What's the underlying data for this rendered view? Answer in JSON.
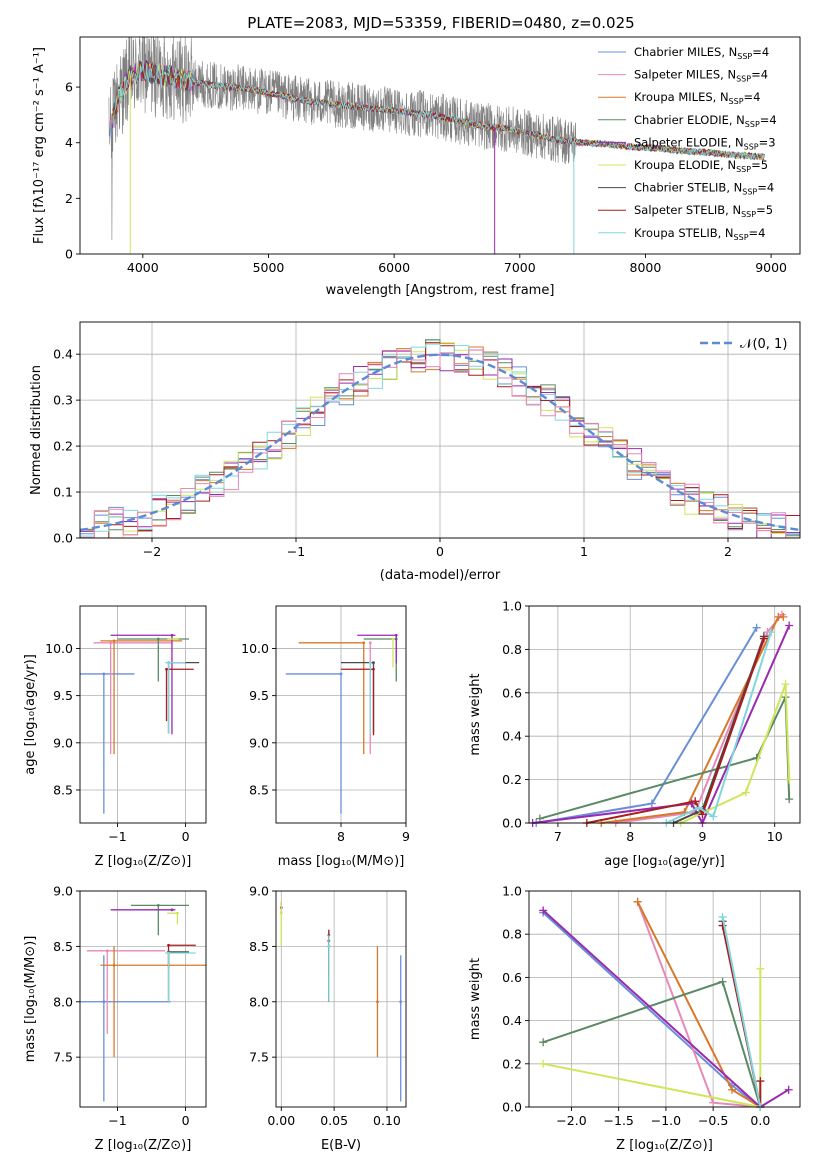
{
  "page": {
    "title": "PLATE=2083, MJD=53359, FIBERID=0480, z=0.025"
  },
  "colors": {
    "spectrum": "#808080",
    "normal_curve": "#5b8bd5",
    "models": [
      "#6a8fd8",
      "#e889b8",
      "#d8782a",
      "#5a8a64",
      "#9a2ab0",
      "#cfe65a",
      "#4a4a4a",
      "#a81d1d",
      "#7fd6dc"
    ]
  },
  "chart_data": [
    {
      "id": "spectrum",
      "type": "line",
      "xlabel": "wavelength [Angstrom, rest frame]",
      "ylabel": "Flux [fλ10⁻¹⁷ erg cm⁻² s⁻¹ A⁻¹]",
      "xlim": [
        3500,
        9230
      ],
      "ylim": [
        0,
        7.8
      ],
      "xticks": [
        "4000",
        "5000",
        "6000",
        "7000",
        "8000",
        "9000"
      ],
      "yticks": [
        "0",
        "2",
        "4",
        "6"
      ],
      "legend_position": "upper-right",
      "legend": [
        {
          "label": "Chabrier MILES, N",
          "sub": "SSP",
          "tail": "=4",
          "color": "#6a8fd8"
        },
        {
          "label": "Salpeter MILES, N",
          "sub": "SSP",
          "tail": "=4",
          "color": "#e889b8"
        },
        {
          "label": "Kroupa MILES, N",
          "sub": "SSP",
          "tail": "=4",
          "color": "#d8782a"
        },
        {
          "label": "Chabrier ELODIE, N",
          "sub": "SSP",
          "tail": "=4",
          "color": "#5a8a64"
        },
        {
          "label": "Salpeter ELODIE, N",
          "sub": "SSP",
          "tail": "=3",
          "color": "#9a2ab0"
        },
        {
          "label": "Kroupa ELODIE, N",
          "sub": "SSP",
          "tail": "=5",
          "color": "#cfe65a"
        },
        {
          "label": "Chabrier STELIB, N",
          "sub": "SSP",
          "tail": "=4",
          "color": "#4a4a4a"
        },
        {
          "label": "Salpeter STELIB, N",
          "sub": "SSP",
          "tail": "=5",
          "color": "#a81d1d"
        },
        {
          "label": "Kroupa STELIB, N",
          "sub": "SSP",
          "tail": "=4",
          "color": "#7fd6dc"
        }
      ],
      "continuum": {
        "x": [
          3730,
          3800,
          3900,
          4000,
          4100,
          4200,
          4300,
          4500,
          4700,
          4900,
          5100,
          5300,
          5500,
          5700,
          5900,
          6100,
          6300,
          6500,
          6700,
          6900,
          7100,
          7300,
          7500,
          7700,
          7900,
          8100,
          8300,
          8500,
          8700,
          8950
        ],
        "y": [
          4.2,
          5.6,
          6.4,
          6.6,
          6.5,
          6.4,
          6.3,
          6.1,
          6.0,
          5.9,
          5.7,
          5.5,
          5.4,
          5.3,
          5.2,
          5.1,
          5.0,
          4.8,
          4.6,
          4.5,
          4.3,
          4.1,
          4.0,
          3.95,
          3.85,
          3.8,
          3.7,
          3.65,
          3.55,
          3.5
        ]
      }
    },
    {
      "id": "residuals",
      "type": "histogram",
      "xlabel": "(data-model)/error",
      "ylabel": "Normed distribution",
      "xlim": [
        -2.5,
        2.5
      ],
      "ylim": [
        0,
        0.47
      ],
      "xticks": [
        "−2",
        "−1",
        "0",
        "1",
        "2"
      ],
      "yticks": [
        "0.0",
        "0.1",
        "0.2",
        "0.3",
        "0.4"
      ],
      "legend": "𝒩(0, 1)",
      "legend_position": "upper-right",
      "bin_width": 0.1
    },
    {
      "id": "age-vs-Z",
      "type": "scatter",
      "xlabel": "Z [log₁₀(Z/Z⊙)]",
      "ylabel": "age  [log₁₀(age/yr)]",
      "xlim": [
        -1.55,
        0.3
      ],
      "ylim": [
        8.15,
        10.45
      ],
      "xticks": [
        "−1",
        "0"
      ],
      "yticks": [
        "8.5",
        "9.0",
        "9.5",
        "10.0"
      ],
      "points": [
        {
          "x": -1.2,
          "y": 9.73,
          "xerr": [
            0.35,
            0.45
          ],
          "yerr": [
            1.48,
            0
          ],
          "c": 0
        },
        {
          "x": -1.1,
          "y": 10.06,
          "xerr": [
            0.25,
            0.9
          ],
          "yerr": [
            1.18,
            0
          ],
          "c": 1
        },
        {
          "x": -1.05,
          "y": 10.08,
          "xerr": [
            0.2,
            1.0
          ],
          "yerr": [
            1.2,
            0
          ],
          "c": 2
        },
        {
          "x": -0.4,
          "y": 10.1,
          "xerr": [
            0.6,
            0.45
          ],
          "yerr": [
            0.45,
            0
          ],
          "c": 3
        },
        {
          "x": -0.2,
          "y": 10.14,
          "xerr": [
            0.9,
            0.05
          ],
          "yerr": [
            1.05,
            0
          ],
          "c": 4
        },
        {
          "x": -0.12,
          "y": 10.1,
          "xerr": [
            0.15,
            0.0
          ],
          "yerr": [
            0,
            0
          ],
          "c": 5
        },
        {
          "x": -0.25,
          "y": 9.85,
          "xerr": [
            0.0,
            0.45
          ],
          "yerr": [
            0.75,
            0
          ],
          "c": 6
        },
        {
          "x": -0.28,
          "y": 9.78,
          "xerr": [
            0.0,
            0.4
          ],
          "yerr": [
            0.55,
            0
          ],
          "c": 7
        },
        {
          "x": -0.25,
          "y": 9.85,
          "xerr": [
            0.05,
            0.25
          ],
          "yerr": [
            0.75,
            0
          ],
          "c": 8
        }
      ]
    },
    {
      "id": "age-vs-mass",
      "type": "scatter",
      "xlabel": "mass [log₁₀(M/M⊙)]",
      "ylabel": "",
      "xlim": [
        7.0,
        9.0
      ],
      "ylim": [
        8.15,
        10.45
      ],
      "xticks": [
        "8",
        "9"
      ],
      "yticks": [
        "8.5",
        "9.0",
        "9.5",
        "10.0"
      ],
      "points": [
        {
          "x": 8.0,
          "y": 9.73,
          "xerr": [
            0.85,
            0.0
          ],
          "yerr": [
            1.48,
            0
          ],
          "c": 0
        },
        {
          "x": 8.45,
          "y": 10.06,
          "xerr": [
            0.0,
            0.0
          ],
          "yerr": [
            1.18,
            0
          ],
          "c": 1
        },
        {
          "x": 8.35,
          "y": 10.06,
          "xerr": [
            1.0,
            0.0
          ],
          "yerr": [
            1.18,
            0
          ],
          "c": 2
        },
        {
          "x": 8.85,
          "y": 10.1,
          "xerr": [
            0.5,
            0.0
          ],
          "yerr": [
            0.45,
            0
          ],
          "c": 3
        },
        {
          "x": 8.85,
          "y": 10.14,
          "xerr": [
            0.6,
            0.0
          ],
          "yerr": [
            0.3,
            0
          ],
          "c": 4
        },
        {
          "x": 8.8,
          "y": 10.1,
          "xerr": [
            0.0,
            0.0
          ],
          "yerr": [
            0.3,
            0
          ],
          "c": 5
        },
        {
          "x": 8.5,
          "y": 9.85,
          "xerr": [
            0.5,
            0.0
          ],
          "yerr": [
            0.75,
            0
          ],
          "c": 6
        },
        {
          "x": 8.5,
          "y": 9.78,
          "xerr": [
            0.5,
            0.0
          ],
          "yerr": [
            0.7,
            0
          ],
          "c": 7
        },
        {
          "x": 8.45,
          "y": 9.85,
          "xerr": [
            0.0,
            0.0
          ],
          "yerr": [
            0.75,
            0
          ],
          "c": 8
        }
      ]
    },
    {
      "id": "massweight-vs-age",
      "type": "line",
      "xlabel": "age  [log₁₀(age/yr)]",
      "ylabel": "mass weight",
      "xlim": [
        6.6,
        10.35
      ],
      "ylim": [
        0,
        1.0
      ],
      "xticks": [
        "7",
        "8",
        "9",
        "10"
      ],
      "yticks": [
        "0.0",
        "0.2",
        "0.4",
        "0.6",
        "0.8",
        "1.0"
      ],
      "series": [
        {
          "c": 0,
          "x": [
            6.7,
            8.3,
            9.75
          ],
          "y": [
            0.0,
            0.09,
            0.9
          ]
        },
        {
          "c": 1,
          "x": [
            7.8,
            8.9,
            9.9,
            10.1
          ],
          "y": [
            0.0,
            0.05,
            0.88,
            0.96
          ]
        },
        {
          "c": 2,
          "x": [
            7.6,
            8.75,
            10.05,
            10.12
          ],
          "y": [
            0.0,
            0.05,
            0.95,
            0.95
          ]
        },
        {
          "c": 3,
          "x": [
            6.75,
            9.75,
            10.15,
            10.2
          ],
          "y": [
            0.02,
            0.3,
            0.58,
            0.11
          ]
        },
        {
          "c": 4,
          "x": [
            6.65,
            8.85,
            9.0,
            10.2
          ],
          "y": [
            0.0,
            0.09,
            0.0,
            0.91
          ]
        },
        {
          "c": 5,
          "x": [
            8.7,
            9.6,
            10.15,
            10.2
          ],
          "y": [
            0.0,
            0.14,
            0.64,
            0.2
          ]
        },
        {
          "c": 6,
          "x": [
            8.6,
            9.0,
            9.85
          ],
          "y": [
            0.0,
            0.06,
            0.86
          ]
        },
        {
          "c": 7,
          "x": [
            7.4,
            8.9,
            9.0,
            9.85
          ],
          "y": [
            0.0,
            0.1,
            0.04,
            0.85
          ]
        },
        {
          "c": 8,
          "x": [
            8.5,
            8.95,
            9.15,
            9.95
          ],
          "y": [
            0.0,
            0.07,
            0.03,
            0.88
          ]
        }
      ]
    },
    {
      "id": "mass-vs-Z",
      "type": "scatter",
      "xlabel": "Z [log₁₀(Z/Z⊙)]",
      "ylabel": "mass [log₁₀(M/M⊙)]",
      "xlim": [
        -1.55,
        0.3
      ],
      "ylim": [
        7.05,
        9.0
      ],
      "xticks": [
        "−1",
        "0"
      ],
      "yticks": [
        "7.5",
        "8.0",
        "8.5",
        "9.0"
      ],
      "points": [
        {
          "x": -1.2,
          "y": 8.0,
          "xerr": [
            0.35,
            0.98
          ],
          "yerr": [
            0.9,
            0.42
          ],
          "c": 0
        },
        {
          "x": -1.15,
          "y": 8.46,
          "xerr": [
            0.3,
            0.85
          ],
          "yerr": [
            0.75,
            0
          ],
          "c": 1
        },
        {
          "x": -1.05,
          "y": 8.33,
          "xerr": [
            0.2,
            1.35
          ],
          "yerr": [
            0.83,
            0.17
          ],
          "c": 2
        },
        {
          "x": -0.4,
          "y": 8.87,
          "xerr": [
            0.4,
            0.45
          ],
          "yerr": [
            0.27,
            0
          ],
          "c": 3
        },
        {
          "x": -0.2,
          "y": 8.83,
          "xerr": [
            0.9,
            0.05
          ],
          "yerr": [
            0,
            0
          ],
          "c": 4
        },
        {
          "x": -0.12,
          "y": 8.8,
          "xerr": [
            0.15,
            0.0
          ],
          "yerr": [
            0.1,
            0
          ],
          "c": 5
        },
        {
          "x": -0.25,
          "y": 8.45,
          "xerr": [
            0.0,
            0.3
          ],
          "yerr": [
            0.45,
            0
          ],
          "c": 6
        },
        {
          "x": -0.25,
          "y": 8.51,
          "xerr": [
            0.0,
            0.4
          ],
          "yerr": [
            0.2,
            0
          ],
          "c": 7
        },
        {
          "x": -0.25,
          "y": 8.44,
          "xerr": [
            0.05,
            0.4
          ],
          "yerr": [
            0.45,
            0
          ],
          "c": 8
        }
      ]
    },
    {
      "id": "mass-vs-ebv",
      "type": "scatter",
      "xlabel": "E(B-V)",
      "ylabel": "",
      "xlim": [
        -0.005,
        0.118
      ],
      "ylim": [
        7.05,
        9.0
      ],
      "xticks": [
        "0.00",
        "0.05",
        "0.10"
      ],
      "yticks": [
        "7.5",
        "8.0",
        "8.5",
        "9.0"
      ],
      "points": [
        {
          "x": 0.113,
          "y": 8.0,
          "yerr": [
            0.9,
            0.42
          ],
          "c": 0
        },
        {
          "x": 0.045,
          "y": 8.5,
          "yerr": [
            0.5,
            0.1
          ],
          "c": 1
        },
        {
          "x": 0.091,
          "y": 8.0,
          "yerr": [
            0.5,
            0.5
          ],
          "c": 2
        },
        {
          "x": 0.045,
          "y": 8.6,
          "yerr": [
            0.6,
            0.05
          ],
          "c": 3
        },
        {
          "x": 0.0,
          "y": 8.85,
          "yerr": [
            0.05,
            0.05
          ],
          "c": 4
        },
        {
          "x": 0.0,
          "y": 8.8,
          "yerr": [
            0.3,
            0.1
          ],
          "c": 5
        },
        {
          "x": 0.045,
          "y": 8.5,
          "yerr": [
            0.5,
            0.1
          ],
          "c": 6
        },
        {
          "x": 0.045,
          "y": 8.55,
          "yerr": [
            0.3,
            0.1
          ],
          "c": 7
        },
        {
          "x": 0.045,
          "y": 8.5,
          "yerr": [
            0.5,
            0.1
          ],
          "c": 8
        }
      ]
    },
    {
      "id": "massweight-vs-Z",
      "type": "line",
      "xlabel": "Z [log₁₀(Z/Z⊙)]",
      "ylabel": "mass weight",
      "xlim": [
        -2.45,
        0.42
      ],
      "ylim": [
        0,
        1.0
      ],
      "xticks": [
        "−2.0",
        "−1.5",
        "−1.0",
        "−0.5",
        "0.0"
      ],
      "yticks": [
        "0.0",
        "0.2",
        "0.4",
        "0.6",
        "0.8",
        "1.0"
      ],
      "series": [
        {
          "c": 0,
          "x": [
            -2.3,
            -0.3,
            0.0
          ],
          "y": [
            0.9,
            0.1,
            0.0
          ]
        },
        {
          "c": 1,
          "x": [
            -1.3,
            -0.5,
            0.0
          ],
          "y": [
            0.95,
            0.02,
            0.0
          ]
        },
        {
          "c": 2,
          "x": [
            -1.3,
            -0.3,
            0.0
          ],
          "y": [
            0.95,
            0.08,
            0.0
          ]
        },
        {
          "c": 3,
          "x": [
            -2.3,
            -0.4,
            0.0
          ],
          "y": [
            0.3,
            0.58,
            0.0
          ]
        },
        {
          "c": 4,
          "x": [
            -2.3,
            0.0,
            0.3
          ],
          "y": [
            0.91,
            0.0,
            0.08
          ]
        },
        {
          "c": 5,
          "x": [
            -2.3,
            0.0,
            0.0
          ],
          "y": [
            0.2,
            0.0,
            0.64
          ]
        },
        {
          "c": 6,
          "x": [
            -0.4,
            0.0
          ],
          "y": [
            0.86,
            0.0
          ]
        },
        {
          "c": 7,
          "x": [
            -0.4,
            0.0,
            0.0
          ],
          "y": [
            0.84,
            0.0,
            0.12
          ]
        },
        {
          "c": 8,
          "x": [
            -0.4,
            0.0
          ],
          "y": [
            0.88,
            0.0
          ]
        }
      ]
    }
  ]
}
